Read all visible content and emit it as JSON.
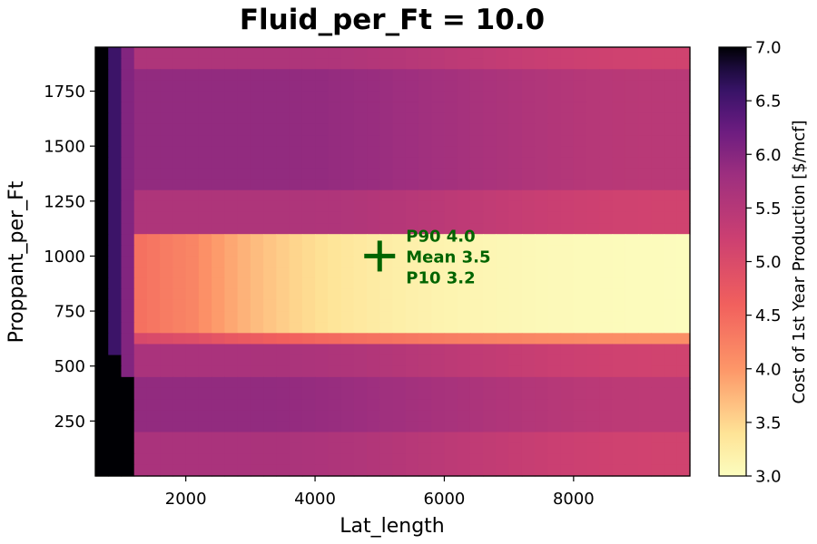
{
  "chart_data": {
    "type": "heatmap",
    "title": "Fluid_per_Ft = 10.0",
    "xlabel": "Lat_length",
    "ylabel": "Proppant_per_Ft",
    "xlim": [
      600,
      9800
    ],
    "ylim": [
      0,
      1950
    ],
    "x_ticks": [
      2000,
      4000,
      6000,
      8000
    ],
    "y_ticks": [
      250,
      500,
      750,
      1000,
      1250,
      1500,
      1750
    ],
    "colorbar": {
      "label": "Cost of 1st Year Production [$/mcf]",
      "min": 3.0,
      "max": 7.0,
      "ticks": [
        "3.0",
        "3.5",
        "4.0",
        "4.5",
        "5.0",
        "5.5",
        "6.0",
        "6.5",
        "7.0"
      ],
      "colormap": "magma_r"
    },
    "heatmap_model": {
      "x_cells": 46,
      "y_cells": 39,
      "description": "Cost by Lat_length and Proppant_per_Ft: very high (>=7) for Lat_length < ~1000; low band (3.0-4.2) for Proppant_per_Ft 625-1100 decreasing with Lat_length; ~5.0-6.0 elsewhere."
    },
    "marker": {
      "x": 5000,
      "y": 1000,
      "symbol": "+",
      "color": "#006400",
      "annotation": [
        "P90 4.0",
        "Mean 3.5",
        "P10 3.2"
      ]
    }
  }
}
